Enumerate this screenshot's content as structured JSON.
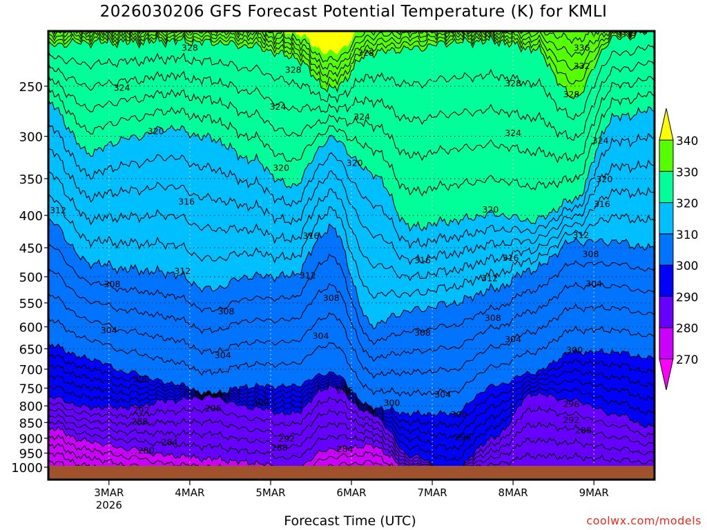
{
  "chart_data": {
    "type": "heatmap",
    "subtype": "filled-contour time-pressure cross-section",
    "title": "2026030206 GFS Forecast Potential Temperature (K) for KMLI",
    "xlabel": "Forecast Time (UTC)",
    "ylabel": "",
    "credit": "coolwx.com/models",
    "x_units": "day of March 2026 (fractional, UTC)",
    "xlim": [
      2.25,
      9.75
    ],
    "y_units": "pressure (hPa), log scale, inverted",
    "ylim": [
      1046,
      205
    ],
    "grid": true,
    "x_ticks": [
      {
        "value": 3,
        "label": "3MAR",
        "sublabel": "2026"
      },
      {
        "value": 4,
        "label": "4MAR"
      },
      {
        "value": 5,
        "label": "5MAR"
      },
      {
        "value": 6,
        "label": "6MAR"
      },
      {
        "value": 7,
        "label": "7MAR"
      },
      {
        "value": 8,
        "label": "8MAR"
      },
      {
        "value": 9,
        "label": "9MAR"
      }
    ],
    "y_ticks": [
      250,
      300,
      350,
      400,
      450,
      500,
      550,
      600,
      650,
      700,
      750,
      800,
      850,
      900,
      950,
      1000
    ],
    "ground_pressure": 1000,
    "ground_color": "#a0522d",
    "colorbar": {
      "levels": [
        270,
        280,
        290,
        300,
        310,
        320,
        330,
        340
      ],
      "colors": [
        "#ff00ff",
        "#cc00ff",
        "#6600ff",
        "#0000ff",
        "#0073ff",
        "#00bfff",
        "#00ff99",
        "#55ff00",
        "#ffff00"
      ],
      "extend": "both"
    },
    "contour_interval": 2,
    "times": [
      2.25,
      2.75,
      3.25,
      3.75,
      4.25,
      4.75,
      5.25,
      5.75,
      6.25,
      6.75,
      7.25,
      7.75,
      8.25,
      8.75,
      9.25,
      9.75
    ],
    "isentrope_pressure": {
      "280": [
        866,
        911,
        935,
        958,
        970,
        983,
        1008,
        935,
        925,
        1015,
        1015,
        1015,
        1015,
        1015,
        1015,
        1015
      ],
      "290": [
        774,
        804,
        804,
        784,
        774,
        804,
        824,
        745,
        824,
        960,
        1015,
        900,
        765,
        784,
        824,
        866
      ],
      "300": [
        641,
        674,
        709,
        736,
        765,
        745,
        745,
        709,
        804,
        824,
        824,
        745,
        709,
        658,
        658,
        674
      ],
      "310": [
        408,
        475,
        487,
        493,
        524,
        499,
        499,
        418,
        595,
        565,
        551,
        524,
        487,
        440,
        440,
        452
      ],
      "320": [
        266,
        318,
        302,
        291,
        302,
        326,
        360,
        302,
        342,
        418,
        408,
        398,
        408,
        379,
        280,
        273
      ],
      "330": [
        215,
        213,
        213,
        212,
        213,
        216,
        224,
        253,
        221,
        218,
        213,
        212,
        218,
        260,
        210,
        205
      ],
      "340": [
        200,
        200,
        200,
        200,
        200,
        200,
        205,
        222,
        200,
        200,
        200,
        200,
        200,
        200,
        200,
        200
      ]
    },
    "contour_labels": [
      {
        "text": "328",
        "day": 4.0,
        "p": 217
      },
      {
        "text": "328",
        "day": 5.28,
        "p": 235
      },
      {
        "text": "328",
        "day": 6.18,
        "p": 221
      },
      {
        "text": "328",
        "day": 8.0,
        "p": 247
      },
      {
        "text": "328",
        "day": 8.72,
        "p": 257
      },
      {
        "text": "336",
        "day": 8.85,
        "p": 217
      },
      {
        "text": "332",
        "day": 8.85,
        "p": 232
      },
      {
        "text": "324",
        "day": 3.16,
        "p": 251
      },
      {
        "text": "324",
        "day": 5.09,
        "p": 269
      },
      {
        "text": "324",
        "day": 6.13,
        "p": 279
      },
      {
        "text": "324",
        "day": 8.0,
        "p": 296
      },
      {
        "text": "324",
        "day": 9.08,
        "p": 304
      },
      {
        "text": "320",
        "day": 3.58,
        "p": 294
      },
      {
        "text": "320",
        "day": 5.13,
        "p": 336
      },
      {
        "text": "320",
        "day": 6.04,
        "p": 330
      },
      {
        "text": "320",
        "day": 7.72,
        "p": 391
      },
      {
        "text": "320",
        "day": 9.13,
        "p": 350
      },
      {
        "text": "316",
        "day": 3.96,
        "p": 380
      },
      {
        "text": "316",
        "day": 5.5,
        "p": 430
      },
      {
        "text": "316",
        "day": 6.88,
        "p": 470
      },
      {
        "text": "316",
        "day": 7.97,
        "p": 466
      },
      {
        "text": "316",
        "day": 9.1,
        "p": 383
      },
      {
        "text": "312",
        "day": 2.37,
        "p": 392
      },
      {
        "text": "312",
        "day": 3.91,
        "p": 489
      },
      {
        "text": "312",
        "day": 5.46,
        "p": 497
      },
      {
        "text": "312",
        "day": 7.71,
        "p": 502
      },
      {
        "text": "312",
        "day": 8.84,
        "p": 429
      },
      {
        "text": "308",
        "day": 3.04,
        "p": 513
      },
      {
        "text": "308",
        "day": 4.45,
        "p": 566
      },
      {
        "text": "308",
        "day": 5.75,
        "p": 539
      },
      {
        "text": "308",
        "day": 6.88,
        "p": 612
      },
      {
        "text": "308",
        "day": 7.75,
        "p": 580
      },
      {
        "text": "308",
        "day": 8.96,
        "p": 460
      },
      {
        "text": "304",
        "day": 3.0,
        "p": 607
      },
      {
        "text": "304",
        "day": 4.41,
        "p": 664
      },
      {
        "text": "304",
        "day": 5.62,
        "p": 619
      },
      {
        "text": "304",
        "day": 8.0,
        "p": 627
      },
      {
        "text": "304",
        "day": 9.0,
        "p": 512
      },
      {
        "text": "304",
        "day": 7.13,
        "p": 766
      },
      {
        "text": "300",
        "day": 3.4,
        "p": 724
      },
      {
        "text": "300",
        "day": 4.88,
        "p": 790
      },
      {
        "text": "300",
        "day": 6.5,
        "p": 790
      },
      {
        "text": "300",
        "day": 7.33,
        "p": 824
      },
      {
        "text": "300",
        "day": 8.76,
        "p": 652
      },
      {
        "text": "296",
        "day": 4.29,
        "p": 806
      },
      {
        "text": "296",
        "day": 5.92,
        "p": 755
      },
      {
        "text": "296",
        "day": 7.38,
        "p": 895
      },
      {
        "text": "296",
        "day": 8.72,
        "p": 794
      },
      {
        "text": "292",
        "day": 3.4,
        "p": 812
      },
      {
        "text": "292",
        "day": 5.2,
        "p": 900
      },
      {
        "text": "292",
        "day": 8.72,
        "p": 841
      },
      {
        "text": "288",
        "day": 3.38,
        "p": 845
      },
      {
        "text": "288",
        "day": 5.11,
        "p": 930
      },
      {
        "text": "288",
        "day": 8.87,
        "p": 873
      },
      {
        "text": "284",
        "day": 3.75,
        "p": 911
      },
      {
        "text": "284",
        "day": 5.92,
        "p": 935
      },
      {
        "text": "280",
        "day": 3.46,
        "p": 939
      }
    ]
  }
}
